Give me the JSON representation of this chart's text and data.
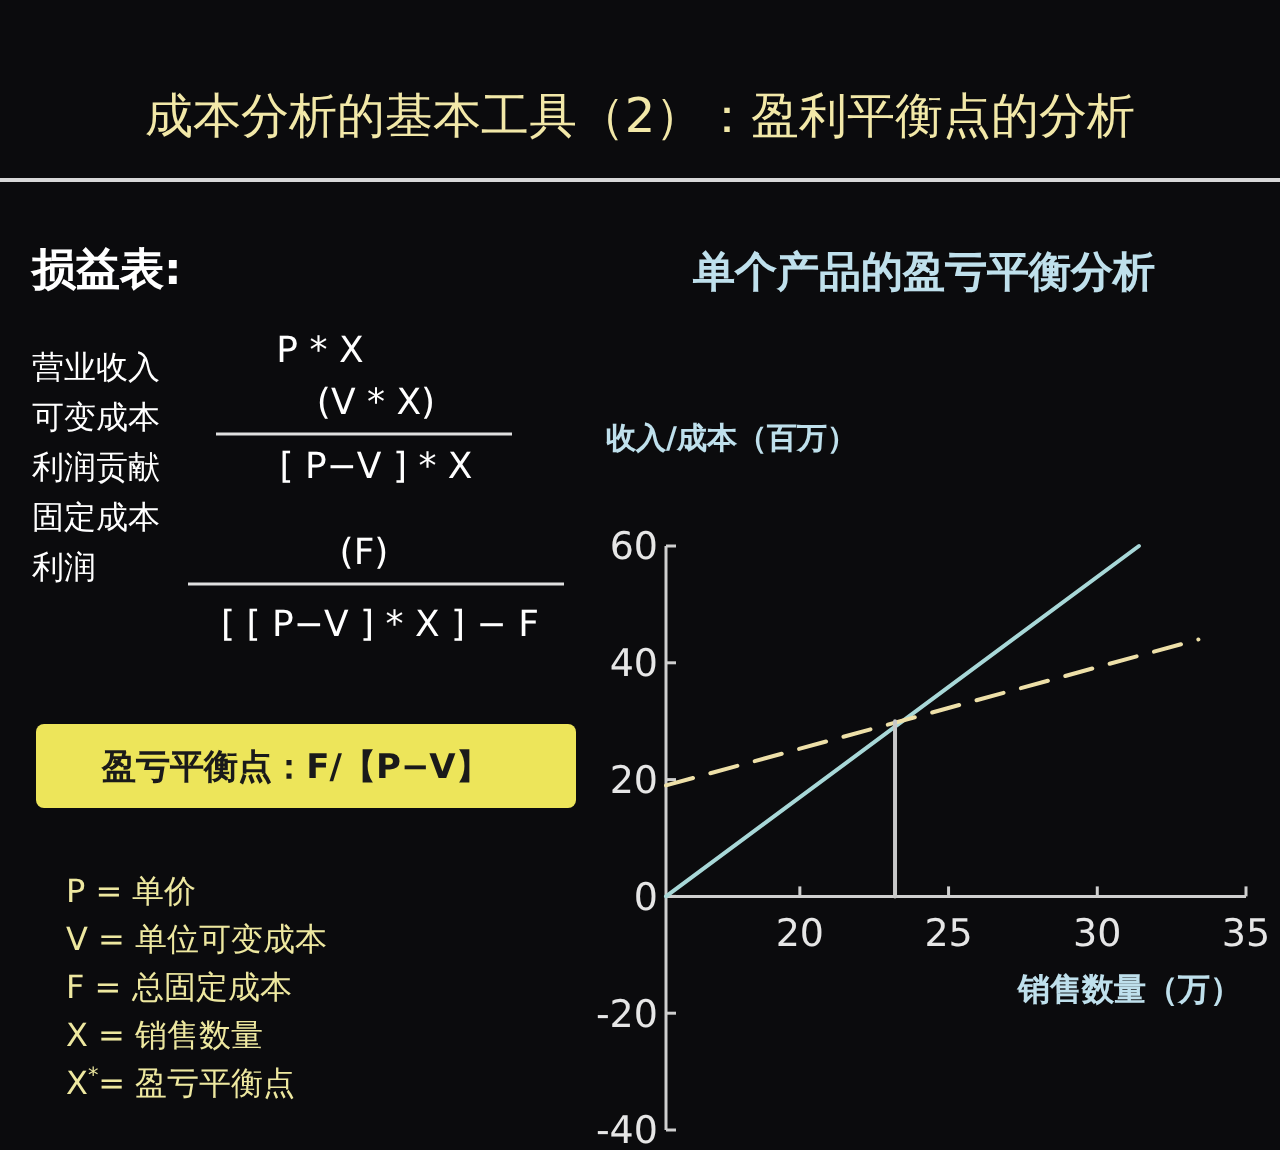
{
  "chart_data": {
    "type": "line",
    "title": "成本分析的基本工具（2）：盈利平衡点的分析",
    "subtitle": "单个产品的盈亏平衡分析",
    "xlabel": "销售数量（万）",
    "ylabel": "收入/成本（百万）",
    "xlim": [
      15.5,
      35
    ],
    "xticks": [
      20,
      25,
      30,
      35
    ],
    "ylim": [
      -40,
      60
    ],
    "yticks": [
      -40,
      -20,
      0,
      20,
      40,
      60
    ],
    "marker": "none",
    "series": [
      {
        "color": "#a8d8d8",
        "x": [
          15.5,
          31.4
        ],
        "values": [
          0,
          60
        ],
        "line_style": "solid"
      },
      {
        "color": "#eee0a8",
        "x": [
          15.5,
          33.4
        ],
        "values": [
          19,
          44
        ],
        "line_style": "dashed"
      },
      {
        "color": "#c8c8c8",
        "x": [
          23.2,
          23.2
        ],
        "values": [
          0,
          30
        ],
        "line_style": "solid"
      }
    ],
    "annotations": [
      "损益表:",
      "营业收入",
      "P * X",
      "可变成本",
      "(V * X)",
      "利润贡献",
      "[ P−V ] * X",
      "固定成本",
      "(F)",
      "利润",
      "[ [ P−V ] * X ] − F",
      "盈亏平衡点：F/【P−V】",
      "P = 单价",
      "V = 单位可变成本",
      "F = 总固定成本",
      "X = 销售数量",
      "X$^{*}$= 盈亏平衡点"
    ]
  }
}
